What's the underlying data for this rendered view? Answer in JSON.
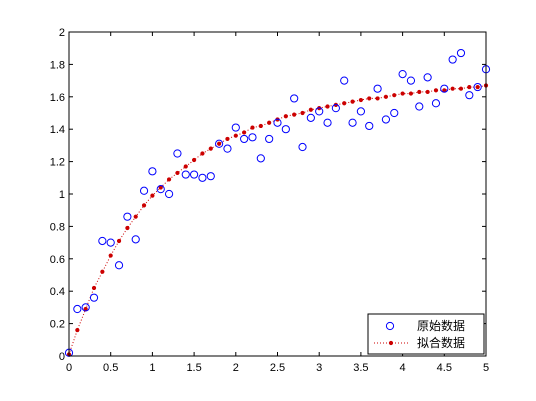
{
  "chart_data": {
    "type": "scatter",
    "title": "",
    "xlabel": "",
    "ylabel": "",
    "xlim": [
      0,
      5
    ],
    "ylim": [
      0,
      2
    ],
    "x_ticks": [
      "0",
      "0.5",
      "1",
      "1.5",
      "2",
      "2.5",
      "3",
      "3.5",
      "4",
      "4.5",
      "5"
    ],
    "y_ticks": [
      "0",
      "0.2",
      "0.4",
      "0.6",
      "0.8",
      "1",
      "1.2",
      "1.4",
      "1.6",
      "1.8",
      "2"
    ],
    "grid": false,
    "legend_position": "bottom-right",
    "series": [
      {
        "name": "原始数据",
        "style": "markers",
        "marker": "circle",
        "color": "#0000ff",
        "x": [
          0.0,
          0.1,
          0.2,
          0.3,
          0.4,
          0.5,
          0.6,
          0.7,
          0.8,
          0.9,
          1.0,
          1.1,
          1.2,
          1.3,
          1.4,
          1.5,
          1.6,
          1.7,
          1.8,
          1.9,
          2.0,
          2.1,
          2.2,
          2.3,
          2.4,
          2.5,
          2.6,
          2.7,
          2.8,
          2.9,
          3.0,
          3.1,
          3.2,
          3.3,
          3.4,
          3.5,
          3.6,
          3.7,
          3.8,
          3.9,
          4.0,
          4.1,
          4.2,
          4.3,
          4.4,
          4.5,
          4.6,
          4.7,
          4.8,
          4.9,
          5.0
        ],
        "y": [
          0.02,
          0.29,
          0.3,
          0.36,
          0.71,
          0.7,
          0.56,
          0.86,
          0.72,
          1.02,
          1.14,
          1.03,
          1.0,
          1.25,
          1.12,
          1.12,
          1.1,
          1.11,
          1.31,
          1.28,
          1.41,
          1.34,
          1.35,
          1.22,
          1.34,
          1.44,
          1.4,
          1.59,
          1.29,
          1.47,
          1.51,
          1.44,
          1.53,
          1.7,
          1.44,
          1.51,
          1.42,
          1.65,
          1.46,
          1.5,
          1.74,
          1.7,
          1.54,
          1.72,
          1.56,
          1.65,
          1.83,
          1.87,
          1.61,
          1.66,
          1.77
        ]
      },
      {
        "name": "拟合数据",
        "style": "dotted-line-with-points",
        "marker": "point",
        "color": "#cc0000",
        "x": [
          0.0,
          0.1,
          0.2,
          0.3,
          0.4,
          0.5,
          0.6,
          0.7,
          0.8,
          0.9,
          1.0,
          1.1,
          1.2,
          1.3,
          1.4,
          1.5,
          1.6,
          1.7,
          1.8,
          1.9,
          2.0,
          2.1,
          2.2,
          2.3,
          2.4,
          2.5,
          2.6,
          2.7,
          2.8,
          2.9,
          3.0,
          3.1,
          3.2,
          3.3,
          3.4,
          3.5,
          3.6,
          3.7,
          3.8,
          3.9,
          4.0,
          4.1,
          4.2,
          4.3,
          4.4,
          4.5,
          4.6,
          4.7,
          4.8,
          4.9,
          5.0
        ],
        "y": [
          0.01,
          0.16,
          0.29,
          0.42,
          0.52,
          0.62,
          0.71,
          0.79,
          0.86,
          0.93,
          0.99,
          1.04,
          1.09,
          1.13,
          1.17,
          1.21,
          1.25,
          1.28,
          1.31,
          1.34,
          1.36,
          1.38,
          1.41,
          1.42,
          1.44,
          1.46,
          1.48,
          1.49,
          1.5,
          1.52,
          1.53,
          1.54,
          1.55,
          1.56,
          1.57,
          1.58,
          1.59,
          1.59,
          1.6,
          1.61,
          1.62,
          1.62,
          1.63,
          1.63,
          1.64,
          1.64,
          1.65,
          1.65,
          1.66,
          1.66,
          1.67
        ]
      }
    ]
  }
}
